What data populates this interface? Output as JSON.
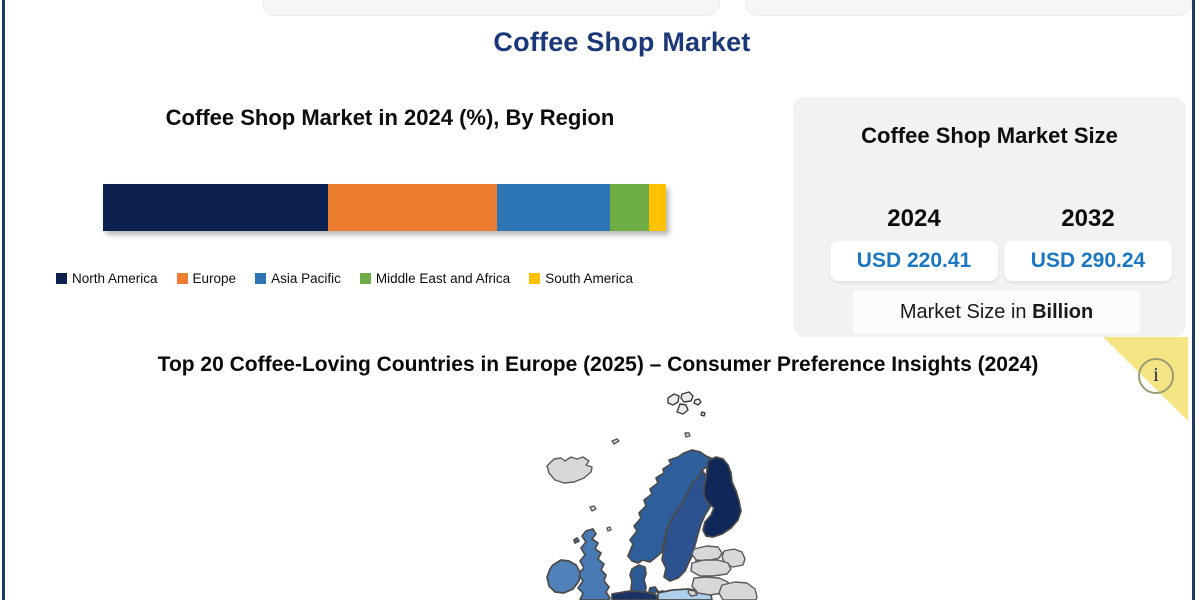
{
  "page": {
    "title": "Coffee Shop Market",
    "accent_color": "#1b3979",
    "frame_color": "#1f3864"
  },
  "chart_data": [
    {
      "type": "bar",
      "stacked": true,
      "orientation": "horizontal",
      "title": "Coffee Shop Market in 2024 (%), By Region",
      "categories": [
        "2024"
      ],
      "unit": "%",
      "series": [
        {
          "name": "North America",
          "values": [
            40
          ],
          "color": "#0d2150"
        },
        {
          "name": "Europe",
          "values": [
            30
          ],
          "color": "#ed7d31"
        },
        {
          "name": "Asia Pacific",
          "values": [
            20
          ],
          "color": "#2e75b6"
        },
        {
          "name": "Middle East and Africa",
          "values": [
            7
          ],
          "color": "#6fad47"
        },
        {
          "name": "South America",
          "values": [
            3
          ],
          "color": "#fdc100"
        }
      ],
      "legend_position": "bottom",
      "xlim": [
        0,
        100
      ],
      "grid": false
    },
    {
      "type": "heatmap",
      "subtype": "choropleth-map",
      "title": "Top 20 Coffee-Loving Countries in Europe (2025) – Consumer Preference Insights (2024)",
      "region": "Europe",
      "legend_position": "none",
      "countries": [
        {
          "name": "Finland",
          "shade": "darkest"
        },
        {
          "name": "Norway",
          "shade": "dark"
        },
        {
          "name": "Sweden",
          "shade": "dark"
        },
        {
          "name": "Denmark",
          "shade": "dark"
        },
        {
          "name": "Germany",
          "shade": "dark"
        },
        {
          "name": "United Kingdom",
          "shade": "medium"
        },
        {
          "name": "Ireland",
          "shade": "medium"
        },
        {
          "name": "Poland",
          "shade": "light"
        },
        {
          "name": "Iceland",
          "shade": "unranked-gray"
        },
        {
          "name": "Estonia",
          "shade": "unranked-gray"
        },
        {
          "name": "Latvia",
          "shade": "unranked-gray"
        },
        {
          "name": "Lithuania",
          "shade": "unranked-gray"
        },
        {
          "name": "Belarus",
          "shade": "unranked-gray"
        },
        {
          "name": "Svalbard",
          "shade": "unranked-gray"
        }
      ]
    }
  ],
  "region_chart": {
    "title": "Coffee Shop Market in 2024 (%), By Region"
  },
  "market_size_panel": {
    "title": "Coffee Shop Market Size",
    "years": [
      {
        "year": "2024",
        "value": "USD 220.41"
      },
      {
        "year": "2032",
        "value": "USD 290.24"
      }
    ],
    "footnote_prefix": "Market Size in ",
    "footnote_bold": "Billion",
    "value_color": "#1c77c3",
    "panel_bg": "#f2f2f2"
  },
  "map_section": {
    "title": "Top 20 Coffee-Loving Countries in Europe (2025) – Consumer Preference Insights (2024)",
    "colors": {
      "finland": "#10275a",
      "norway": "#2e5f9c",
      "sweden": "#2c5390",
      "denmark": "#2d5a96",
      "uk": "#4a7ab5",
      "ireland": "#5181b8",
      "poland": "#aed0ec",
      "germany": "#1a3264",
      "gray": "#d8d8d8",
      "svalbard": "#ececec"
    }
  },
  "info_icon": {
    "glyph": "i",
    "corner_color": "#f6e584"
  }
}
